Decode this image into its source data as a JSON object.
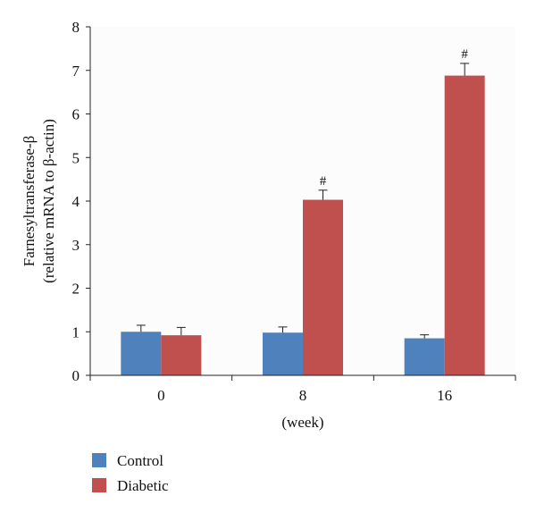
{
  "chart_data": {
    "type": "bar",
    "categories": [
      "0",
      "8",
      "16"
    ],
    "series": [
      {
        "name": "Control",
        "color": "#4F81BD",
        "values": [
          1.0,
          0.98,
          0.85
        ],
        "errors": [
          0.15,
          0.13,
          0.08
        ]
      },
      {
        "name": "Diabetic",
        "color": "#C0504D",
        "values": [
          0.92,
          4.03,
          6.88
        ],
        "errors": [
          0.18,
          0.22,
          0.28
        ]
      }
    ],
    "annotations": [
      {
        "category": "8",
        "series": "Diabetic",
        "text": "#"
      },
      {
        "category": "16",
        "series": "Diabetic",
        "text": "#"
      }
    ],
    "ylabel_line1": "Farnesyltransferase-β",
    "ylabel_line2": "(relative mRNA to β-actin)",
    "xlabel": "(week)",
    "ylim": [
      0,
      8
    ],
    "yticks": [
      0,
      1,
      2,
      3,
      4,
      5,
      6,
      7,
      8
    ],
    "grid": false,
    "legend_position": "bottom-left"
  }
}
